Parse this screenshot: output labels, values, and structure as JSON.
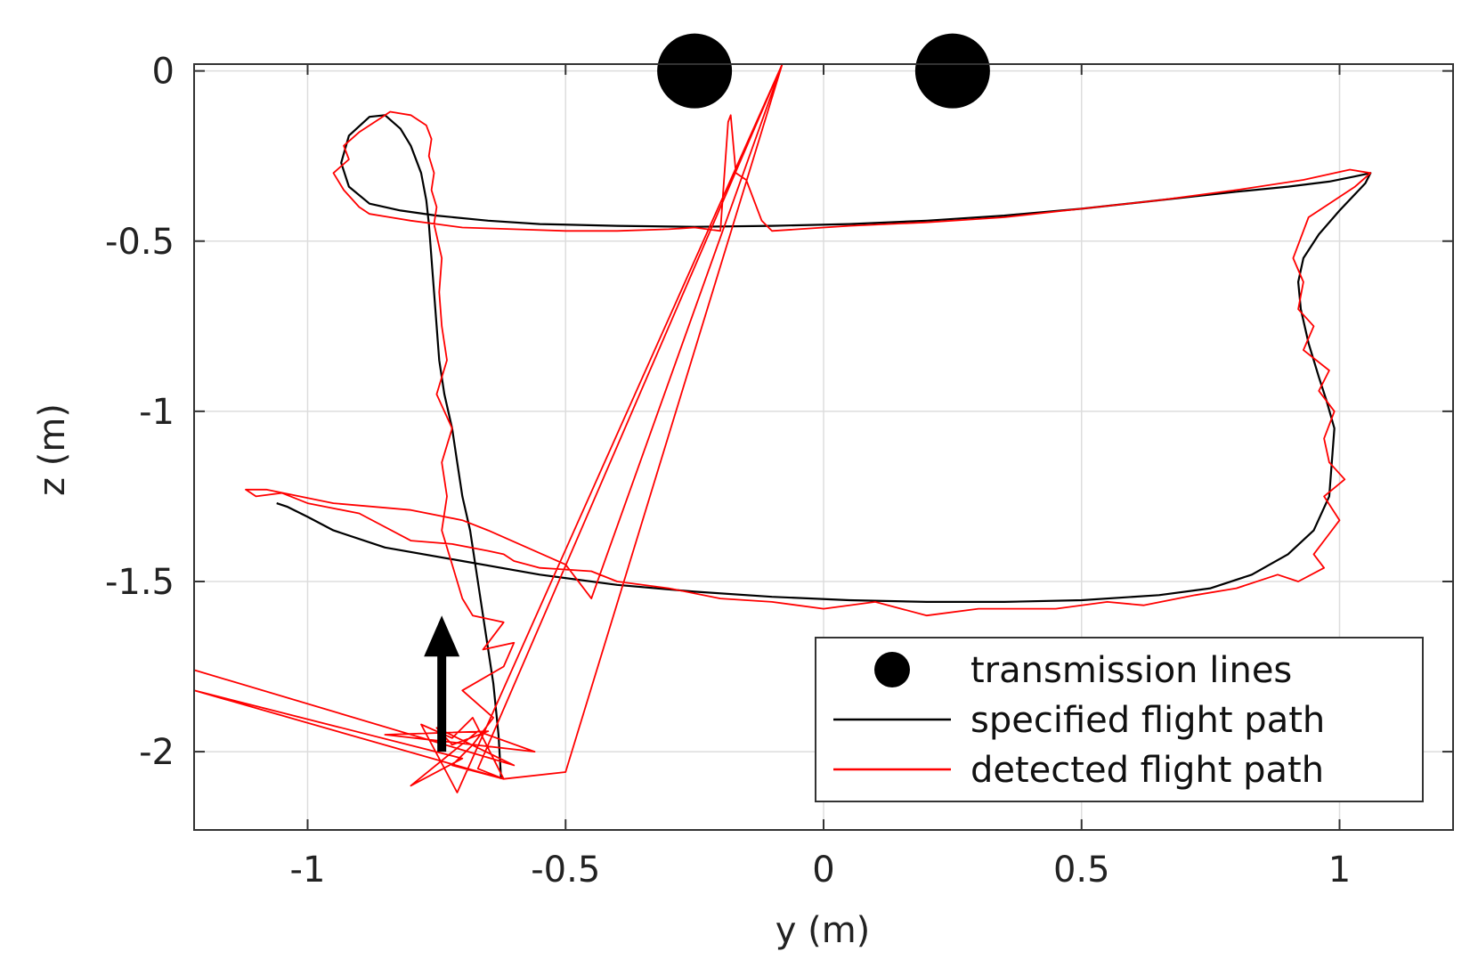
{
  "chart_data": {
    "type": "line",
    "title": "",
    "xlabel": "y (m)",
    "ylabel": "z (m)",
    "xlim": [
      -1.22,
      1.22
    ],
    "ylim": [
      -2.23,
      0.02
    ],
    "grid": true,
    "x_ticks": [
      -1,
      -0.5,
      0,
      0.5,
      1
    ],
    "x_tick_labels": [
      "-1",
      "-0.5",
      "0",
      "0.5",
      "1"
    ],
    "y_ticks": [
      0,
      -0.5,
      -1,
      -1.5,
      -2
    ],
    "y_tick_labels": [
      "0",
      "-0.5",
      "-1",
      "-1.5",
      "-2"
    ],
    "legend_position": "bottom-right",
    "colors": {
      "transmission": "#000000",
      "specified": "#000000",
      "detected": "#ff0000",
      "grid": "#dddddd",
      "axes": "#333333"
    },
    "series": [
      {
        "name": "transmission lines",
        "kind": "marker",
        "x": [
          -0.25,
          0.25
        ],
        "y": [
          0.0,
          0.0
        ]
      },
      {
        "name": "specified flight path",
        "kind": "line",
        "x": [
          -0.625,
          -0.63,
          -0.64,
          -0.655,
          -0.67,
          -0.685,
          -0.7,
          -0.71,
          -0.72,
          -0.735,
          -0.745,
          -0.75,
          -0.755,
          -0.76,
          -0.765,
          -0.77,
          -0.78,
          -0.8,
          -0.82,
          -0.85,
          -0.88,
          -0.92,
          -0.935,
          -0.92,
          -0.88,
          -0.82,
          -0.75,
          -0.65,
          -0.55,
          -0.4,
          -0.25,
          -0.1,
          0.05,
          0.2,
          0.35,
          0.5,
          0.65,
          0.8,
          0.9,
          0.98,
          1.03,
          1.06,
          1.05,
          1.0,
          0.96,
          0.93,
          0.92,
          0.925,
          0.94,
          0.96,
          0.975,
          0.99,
          0.98,
          0.95,
          0.9,
          0.83,
          0.75,
          0.65,
          0.5,
          0.35,
          0.2,
          0.05,
          -0.1,
          -0.25,
          -0.4,
          -0.55,
          -0.7,
          -0.85,
          -0.95,
          -1.0,
          -1.04,
          -1.06
        ],
        "y": [
          -2.08,
          -1.95,
          -1.8,
          -1.65,
          -1.5,
          -1.35,
          -1.25,
          -1.15,
          -1.05,
          -0.95,
          -0.85,
          -0.75,
          -0.65,
          -0.55,
          -0.45,
          -0.38,
          -0.3,
          -0.22,
          -0.17,
          -0.13,
          -0.135,
          -0.19,
          -0.27,
          -0.34,
          -0.39,
          -0.41,
          -0.425,
          -0.44,
          -0.45,
          -0.455,
          -0.458,
          -0.455,
          -0.45,
          -0.44,
          -0.425,
          -0.405,
          -0.38,
          -0.355,
          -0.34,
          -0.325,
          -0.31,
          -0.3,
          -0.33,
          -0.41,
          -0.48,
          -0.55,
          -0.62,
          -0.7,
          -0.8,
          -0.9,
          -0.97,
          -1.05,
          -1.25,
          -1.35,
          -1.42,
          -1.48,
          -1.52,
          -1.54,
          -1.555,
          -1.56,
          -1.56,
          -1.555,
          -1.545,
          -1.53,
          -1.51,
          -1.48,
          -1.44,
          -1.4,
          -1.35,
          -1.31,
          -1.28,
          -1.27
        ]
      },
      {
        "name": "detected flight path",
        "kind": "line",
        "x": [
          -1.22,
          -0.6,
          -0.75,
          -0.72,
          -0.65,
          -0.85,
          -0.56,
          -0.67,
          -0.8,
          -0.7,
          -1.22,
          -0.62,
          -0.72,
          -0.68,
          -0.64,
          -0.7,
          -0.62,
          -0.6,
          -0.66,
          -0.62,
          -0.68,
          -0.7,
          -0.72,
          -0.74,
          -0.73,
          -0.74,
          -0.72,
          -0.75,
          -0.73,
          -0.74,
          -0.745,
          -0.74,
          -0.755,
          -0.75,
          -0.76,
          -0.755,
          -0.765,
          -0.76,
          -0.77,
          -0.8,
          -0.84,
          -0.86,
          -0.9,
          -0.93,
          -0.92,
          -0.95,
          -0.93,
          -0.9,
          -0.88,
          -0.84,
          -0.8,
          -0.75,
          -0.7,
          -0.6,
          -0.5,
          -0.4,
          -0.3,
          -0.25,
          -0.2,
          -0.185,
          -0.18,
          -0.17,
          -0.15,
          -0.12,
          -0.1,
          0.05,
          0.2,
          0.35,
          0.5,
          0.65,
          0.8,
          0.93,
          1.02,
          1.06,
          1.03,
          1.01,
          0.98,
          0.94,
          0.91,
          0.93,
          0.92,
          0.95,
          0.93,
          0.98,
          0.96,
          0.99,
          0.97,
          0.98,
          1.01,
          0.97,
          1.0,
          0.98,
          0.95,
          0.97,
          0.92,
          0.88,
          0.8,
          0.72,
          0.62,
          0.55,
          0.45,
          0.3,
          0.2,
          0.1,
          0.0,
          -0.1,
          -0.2,
          -0.3,
          -0.4,
          -0.45,
          -0.55,
          -0.6,
          -0.62,
          -0.65,
          -0.72,
          -0.8,
          -0.9,
          -1.0,
          -1.05,
          -1.1,
          -1.12,
          -1.08,
          -0.95,
          -0.8,
          -0.7,
          -0.65,
          -0.5,
          -0.45,
          -0.08,
          -0.67,
          -0.62,
          -0.5,
          -0.08,
          -0.71,
          -0.78,
          -0.72,
          -0.68,
          -0.62
        ],
        "y": [
          -1.76,
          -2.04,
          -1.93,
          -1.98,
          -1.94,
          -1.95,
          -2.0,
          -1.94,
          -2.1,
          -2.02,
          -1.82,
          -2.08,
          -2.04,
          -1.98,
          -1.9,
          -1.82,
          -1.75,
          -1.68,
          -1.7,
          -1.62,
          -1.6,
          -1.55,
          -1.45,
          -1.35,
          -1.25,
          -1.15,
          -1.05,
          -0.95,
          -0.85,
          -0.75,
          -0.65,
          -0.55,
          -0.45,
          -0.4,
          -0.35,
          -0.3,
          -0.25,
          -0.2,
          -0.16,
          -0.13,
          -0.12,
          -0.14,
          -0.18,
          -0.22,
          -0.26,
          -0.3,
          -0.35,
          -0.4,
          -0.42,
          -0.43,
          -0.44,
          -0.45,
          -0.46,
          -0.465,
          -0.47,
          -0.47,
          -0.465,
          -0.46,
          -0.47,
          -0.15,
          -0.13,
          -0.3,
          -0.32,
          -0.44,
          -0.47,
          -0.455,
          -0.445,
          -0.43,
          -0.405,
          -0.38,
          -0.35,
          -0.32,
          -0.29,
          -0.3,
          -0.34,
          -0.36,
          -0.39,
          -0.43,
          -0.55,
          -0.62,
          -0.7,
          -0.75,
          -0.82,
          -0.88,
          -0.94,
          -1.0,
          -1.08,
          -1.15,
          -1.2,
          -1.25,
          -1.32,
          -1.36,
          -1.42,
          -1.46,
          -1.5,
          -1.48,
          -1.52,
          -1.54,
          -1.57,
          -1.56,
          -1.58,
          -1.58,
          -1.6,
          -1.56,
          -1.58,
          -1.56,
          -1.55,
          -1.52,
          -1.5,
          -1.47,
          -1.46,
          -1.44,
          -1.42,
          -1.41,
          -1.39,
          -1.38,
          -1.3,
          -1.27,
          -1.24,
          -1.25,
          -1.23,
          -1.23,
          -1.27,
          -1.29,
          -1.32,
          -1.35,
          -1.45,
          -1.55,
          0.02,
          -2.05,
          -2.08,
          -2.06,
          0.02,
          -2.12,
          -1.92,
          -1.96,
          -1.9,
          -2.08
        ]
      }
    ],
    "annotations": [
      {
        "type": "arrow",
        "x": -0.74,
        "y_start": -2.0,
        "y_end": -1.6,
        "direction": "up"
      }
    ]
  }
}
